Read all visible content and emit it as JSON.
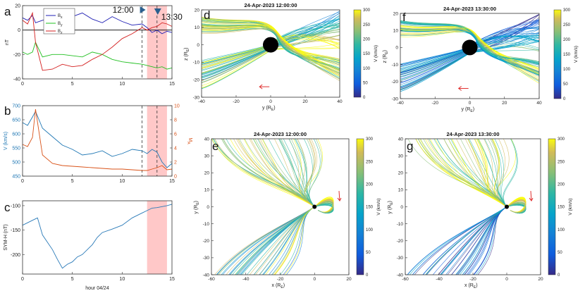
{
  "figure": {
    "panel_letters": [
      "a",
      "b",
      "c",
      "d",
      "e",
      "f",
      "g"
    ],
    "time_markers": {
      "first": "12:00",
      "second": "13:30"
    },
    "colors": {
      "bx": "#1f1fb4",
      "by": "#22c022",
      "bz": "#d41f1f",
      "v": "#1f77b4",
      "ma": "#d95319",
      "shade": "#ffc8c8",
      "earth": "#000000",
      "arrow": "#e03030"
    }
  },
  "chart_data": [
    {
      "id": "a",
      "type": "line",
      "ylabel": "nT",
      "xlim": [
        0,
        15
      ],
      "ylim": [
        -40,
        20
      ],
      "yticks": [
        "20",
        "0",
        "-20",
        "-40"
      ],
      "xticks": [
        "0",
        "5",
        "10",
        "15"
      ],
      "legend": [
        "B",
        "B",
        "B"
      ],
      "legend_subscripts": [
        "x",
        "y",
        "z"
      ],
      "shaded": [
        12.5,
        14.5
      ],
      "dashed": [
        12,
        13.5
      ],
      "series": [
        {
          "name": "Bx",
          "x": [
            0,
            0.5,
            1,
            1.3,
            2,
            3,
            4,
            5,
            6,
            7,
            8,
            9,
            10,
            11,
            12,
            12.5,
            13,
            13.5,
            14,
            14.5,
            15
          ],
          "values": [
            10,
            8,
            12,
            6,
            8,
            10,
            12,
            11,
            14,
            9,
            6,
            11,
            7,
            4,
            5,
            2,
            -2,
            0,
            -3,
            -1,
            -2
          ]
        },
        {
          "name": "By",
          "x": [
            0,
            0.5,
            1,
            1.3,
            2,
            3,
            4,
            5,
            6,
            7,
            8,
            9,
            10,
            11,
            12,
            12.5,
            13,
            13.5,
            14,
            14.5,
            15
          ],
          "values": [
            -18,
            -20,
            -18,
            -10,
            -22,
            -20,
            -20,
            -21,
            -22,
            -18,
            -20,
            -24,
            -26,
            -27,
            -28,
            -29,
            -30,
            -31,
            -30,
            -32,
            -31
          ]
        },
        {
          "name": "Bz",
          "x": [
            0,
            0.5,
            1,
            1.3,
            2,
            3,
            4,
            5,
            6,
            7,
            8,
            9,
            10,
            11,
            12,
            12.5,
            13,
            13.5,
            14,
            14.5,
            15
          ],
          "values": [
            8,
            5,
            14,
            -10,
            -33,
            -32,
            -28,
            -30,
            -29,
            -24,
            -20,
            -14,
            -7,
            -3,
            2,
            0,
            2,
            3,
            6,
            5,
            3
          ]
        }
      ]
    },
    {
      "id": "b",
      "type": "line",
      "ylabel": "V (km/s)",
      "ylabel2": "M",
      "ylabel2_sub": "A",
      "xlim": [
        0,
        15
      ],
      "ylim": [
        450,
        700
      ],
      "ylim2": [
        0,
        10
      ],
      "yticks": [
        "700",
        "650",
        "600",
        "550",
        "500",
        "450"
      ],
      "yticks2": [
        "10",
        "8",
        "6",
        "4",
        "2",
        "0"
      ],
      "xticks": [
        "0",
        "5",
        "10",
        "15"
      ],
      "shaded": [
        12.5,
        14.5
      ],
      "dashed": [
        12,
        13.5
      ],
      "series": [
        {
          "name": "V",
          "x": [
            0,
            0.5,
            1,
            1.3,
            2,
            3,
            4,
            5,
            6,
            7,
            8,
            9,
            10,
            11,
            12,
            12.5,
            13,
            13.5,
            14,
            14.5,
            15
          ],
          "values": [
            640,
            630,
            660,
            680,
            620,
            590,
            560,
            545,
            525,
            530,
            540,
            520,
            530,
            545,
            540,
            530,
            545,
            535,
            500,
            480,
            495
          ]
        },
        {
          "name": "MA",
          "axis": "right",
          "x": [
            0,
            0.5,
            1,
            1.3,
            2,
            3,
            4,
            5,
            6,
            7,
            8,
            9,
            10,
            11,
            12,
            12.5,
            13,
            13.5,
            14,
            14.5,
            15
          ],
          "values": [
            4.5,
            4.2,
            5.5,
            9.5,
            3.0,
            1.8,
            1.5,
            1.4,
            1.3,
            1.2,
            1.1,
            1.0,
            1.0,
            0.9,
            0.8,
            0.8,
            1.0,
            1.2,
            1.5,
            0.9,
            1.0
          ]
        }
      ]
    },
    {
      "id": "c",
      "type": "line",
      "ylabel": "SYM-H (nT)",
      "xlabel": "hour 04/24",
      "xlim": [
        0,
        15
      ],
      "ylim": [
        -240,
        -90
      ],
      "yticks": [
        "-100",
        "-150",
        "-200"
      ],
      "xticks": [
        "0",
        "5",
        "10",
        "15"
      ],
      "shaded": [
        12.5,
        14.5
      ],
      "series": [
        {
          "name": "SYM-H",
          "x": [
            0,
            0.5,
            1,
            1.5,
            2,
            2.5,
            3,
            3.5,
            4,
            4.5,
            5,
            5.5,
            6,
            6.5,
            7,
            7.5,
            8,
            9,
            10,
            11,
            12,
            12.5,
            13,
            13.5,
            14,
            14.5,
            15
          ],
          "values": [
            -140,
            -135,
            -130,
            -125,
            -160,
            -175,
            -190,
            -210,
            -228,
            -220,
            -215,
            -205,
            -200,
            -190,
            -180,
            -165,
            -155,
            -148,
            -140,
            -125,
            -115,
            -110,
            -105,
            -104,
            -102,
            -100,
            -97
          ]
        }
      ]
    },
    {
      "id": "d",
      "type": "scatter",
      "title": "24-Apr-2023 12:00:00",
      "xlabel": "y (R",
      "xlabel_sub": "E",
      "ylabel": "z (R",
      "ylabel_sub": "E",
      "xlim": [
        -40,
        40
      ],
      "ylim": [
        -30,
        20
      ],
      "xticks": [
        "-40",
        "-20",
        "0",
        "20",
        "40"
      ],
      "yticks": [
        "20",
        "10",
        "0",
        "-10",
        "-20",
        "-30"
      ],
      "colorbar_label": "V (km/s)",
      "colorbar_ticks": [
        "300",
        "250",
        "200",
        "150",
        "100",
        "50",
        "0"
      ]
    },
    {
      "id": "f",
      "type": "scatter",
      "title": "24-Apr-2023 13:30:00",
      "xlabel": "y (R",
      "xlabel_sub": "E",
      "ylabel": "z (R",
      "ylabel_sub": "E",
      "xlim": [
        -40,
        40
      ],
      "ylim": [
        -30,
        20
      ],
      "xticks": [
        "-40",
        "-20",
        "0",
        "20",
        "40"
      ],
      "yticks": [
        "20",
        "10",
        "0",
        "-10",
        "-20",
        "-30"
      ],
      "colorbar_label": "V (km/s)",
      "colorbar_ticks": [
        "300",
        "250",
        "200",
        "150",
        "100",
        "50",
        "0"
      ]
    },
    {
      "id": "e",
      "type": "scatter",
      "title": "24-Apr-2023 12:00:00",
      "xlabel": "x (R",
      "xlabel_sub": "E",
      "ylabel": "y (R",
      "ylabel_sub": "E",
      "xlim": [
        -60,
        20
      ],
      "ylim": [
        -40,
        40
      ],
      "xticks": [
        "-60",
        "-40",
        "-20",
        "0",
        "20"
      ],
      "yticks": [
        "40",
        "30",
        "20",
        "10",
        "0",
        "-10",
        "-20",
        "-30",
        "-40"
      ],
      "colorbar_label": "V (km/s)",
      "colorbar_ticks": [
        "300",
        "250",
        "200",
        "150",
        "100",
        "50",
        "0"
      ]
    },
    {
      "id": "g",
      "type": "scatter",
      "title": "24-Apr-2023 13:30:00",
      "xlabel": "x (R",
      "xlabel_sub": "E",
      "ylabel": "y (R",
      "ylabel_sub": "E",
      "xlim": [
        -60,
        20
      ],
      "ylim": [
        -40,
        40
      ],
      "xticks": [
        "-60",
        "-40",
        "-20",
        "0",
        "20"
      ],
      "yticks": [
        "40",
        "30",
        "20",
        "10",
        "0",
        "-10",
        "-20",
        "-30",
        "-40"
      ],
      "colorbar_label": "V (km/s)",
      "colorbar_ticks": [
        "300",
        "250",
        "200",
        "150",
        "100",
        "50",
        "0"
      ]
    }
  ]
}
